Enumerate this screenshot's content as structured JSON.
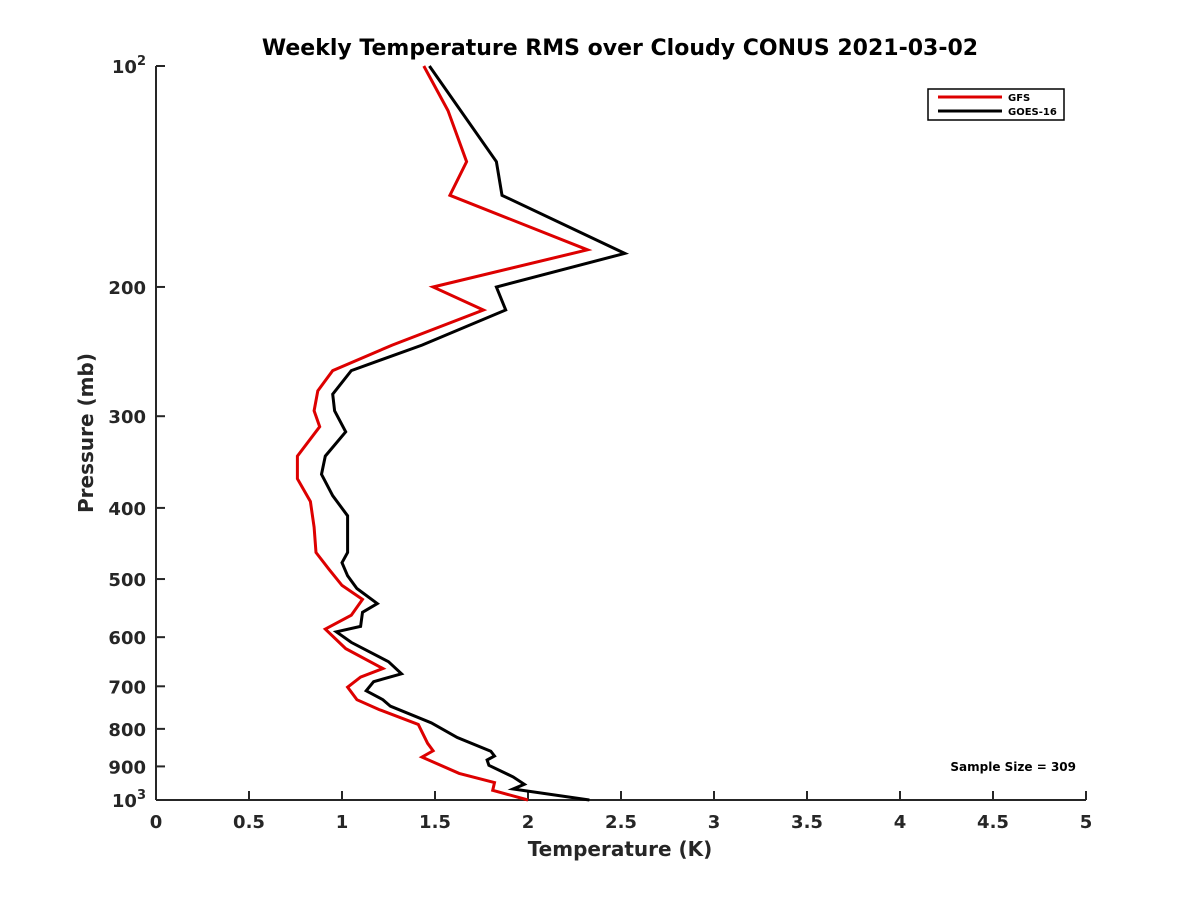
{
  "chart_data": {
    "type": "line",
    "title": "Weekly Temperature RMS over Cloudy CONUS 2021-03-02",
    "xlabel": "Temperature (K)",
    "ylabel": "Pressure (mb)",
    "xlim": [
      0,
      5
    ],
    "ylim": [
      100,
      1000
    ],
    "y_scale": "log",
    "y_reversed": true,
    "grid": false,
    "legend_position": "top-right",
    "x_ticks": [
      "0",
      "0.5",
      "1",
      "1.5",
      "2",
      "2.5",
      "3",
      "3.5",
      "4",
      "4.5",
      "5"
    ],
    "y_ticks": [
      {
        "value": 100,
        "base": "10",
        "exp": "2"
      },
      {
        "value": 200,
        "label": "200"
      },
      {
        "value": 300,
        "label": "300"
      },
      {
        "value": 400,
        "label": "400"
      },
      {
        "value": 500,
        "label": "500"
      },
      {
        "value": 600,
        "label": "600"
      },
      {
        "value": 700,
        "label": "700"
      },
      {
        "value": 800,
        "label": "800"
      },
      {
        "value": 900,
        "label": "900"
      },
      {
        "value": 1000,
        "base": "10",
        "exp": "3"
      }
    ],
    "series": [
      {
        "name": "GFS",
        "color": "#dd0000",
        "points": [
          [
            1.44,
            100
          ],
          [
            1.57,
            115
          ],
          [
            1.67,
            135
          ],
          [
            1.58,
            150
          ],
          [
            2.32,
            178
          ],
          [
            1.49,
            200
          ],
          [
            1.76,
            215
          ],
          [
            1.27,
            240
          ],
          [
            0.95,
            260
          ],
          [
            0.87,
            277
          ],
          [
            0.85,
            295
          ],
          [
            0.88,
            310
          ],
          [
            0.76,
            340
          ],
          [
            0.76,
            365
          ],
          [
            0.83,
            392
          ],
          [
            0.85,
            425
          ],
          [
            0.86,
            460
          ],
          [
            0.93,
            485
          ],
          [
            1.0,
            510
          ],
          [
            1.11,
            533
          ],
          [
            1.05,
            560
          ],
          [
            0.91,
            585
          ],
          [
            1.02,
            622
          ],
          [
            1.22,
            662
          ],
          [
            1.1,
            680
          ],
          [
            1.03,
            702
          ],
          [
            1.08,
            730
          ],
          [
            1.2,
            753
          ],
          [
            1.41,
            789
          ],
          [
            1.46,
            837
          ],
          [
            1.49,
            857
          ],
          [
            1.43,
            874
          ],
          [
            1.63,
            920
          ],
          [
            1.82,
            947
          ],
          [
            1.81,
            970
          ],
          [
            2.0,
            1000
          ]
        ]
      },
      {
        "name": "GOES-16",
        "color": "#000000",
        "points": [
          [
            1.47,
            100
          ],
          [
            1.83,
            135
          ],
          [
            1.86,
            150
          ],
          [
            2.52,
            180
          ],
          [
            1.83,
            200
          ],
          [
            1.88,
            215
          ],
          [
            1.43,
            240
          ],
          [
            1.05,
            260
          ],
          [
            0.95,
            280
          ],
          [
            0.96,
            295
          ],
          [
            1.02,
            315
          ],
          [
            0.91,
            340
          ],
          [
            0.89,
            360
          ],
          [
            0.95,
            385
          ],
          [
            1.03,
            410
          ],
          [
            1.03,
            460
          ],
          [
            1.0,
            475
          ],
          [
            1.03,
            495
          ],
          [
            1.08,
            515
          ],
          [
            1.19,
            540
          ],
          [
            1.11,
            555
          ],
          [
            1.1,
            580
          ],
          [
            0.97,
            590
          ],
          [
            1.05,
            610
          ],
          [
            1.25,
            648
          ],
          [
            1.32,
            673
          ],
          [
            1.17,
            690
          ],
          [
            1.13,
            710
          ],
          [
            1.22,
            730
          ],
          [
            1.26,
            745
          ],
          [
            1.48,
            785
          ],
          [
            1.62,
            822
          ],
          [
            1.8,
            858
          ],
          [
            1.82,
            871
          ],
          [
            1.78,
            882
          ],
          [
            1.79,
            897
          ],
          [
            1.92,
            930
          ],
          [
            1.98,
            952
          ],
          [
            1.92,
            966
          ],
          [
            2.33,
            1000
          ]
        ]
      }
    ],
    "annotation": "Sample Size = 309"
  }
}
